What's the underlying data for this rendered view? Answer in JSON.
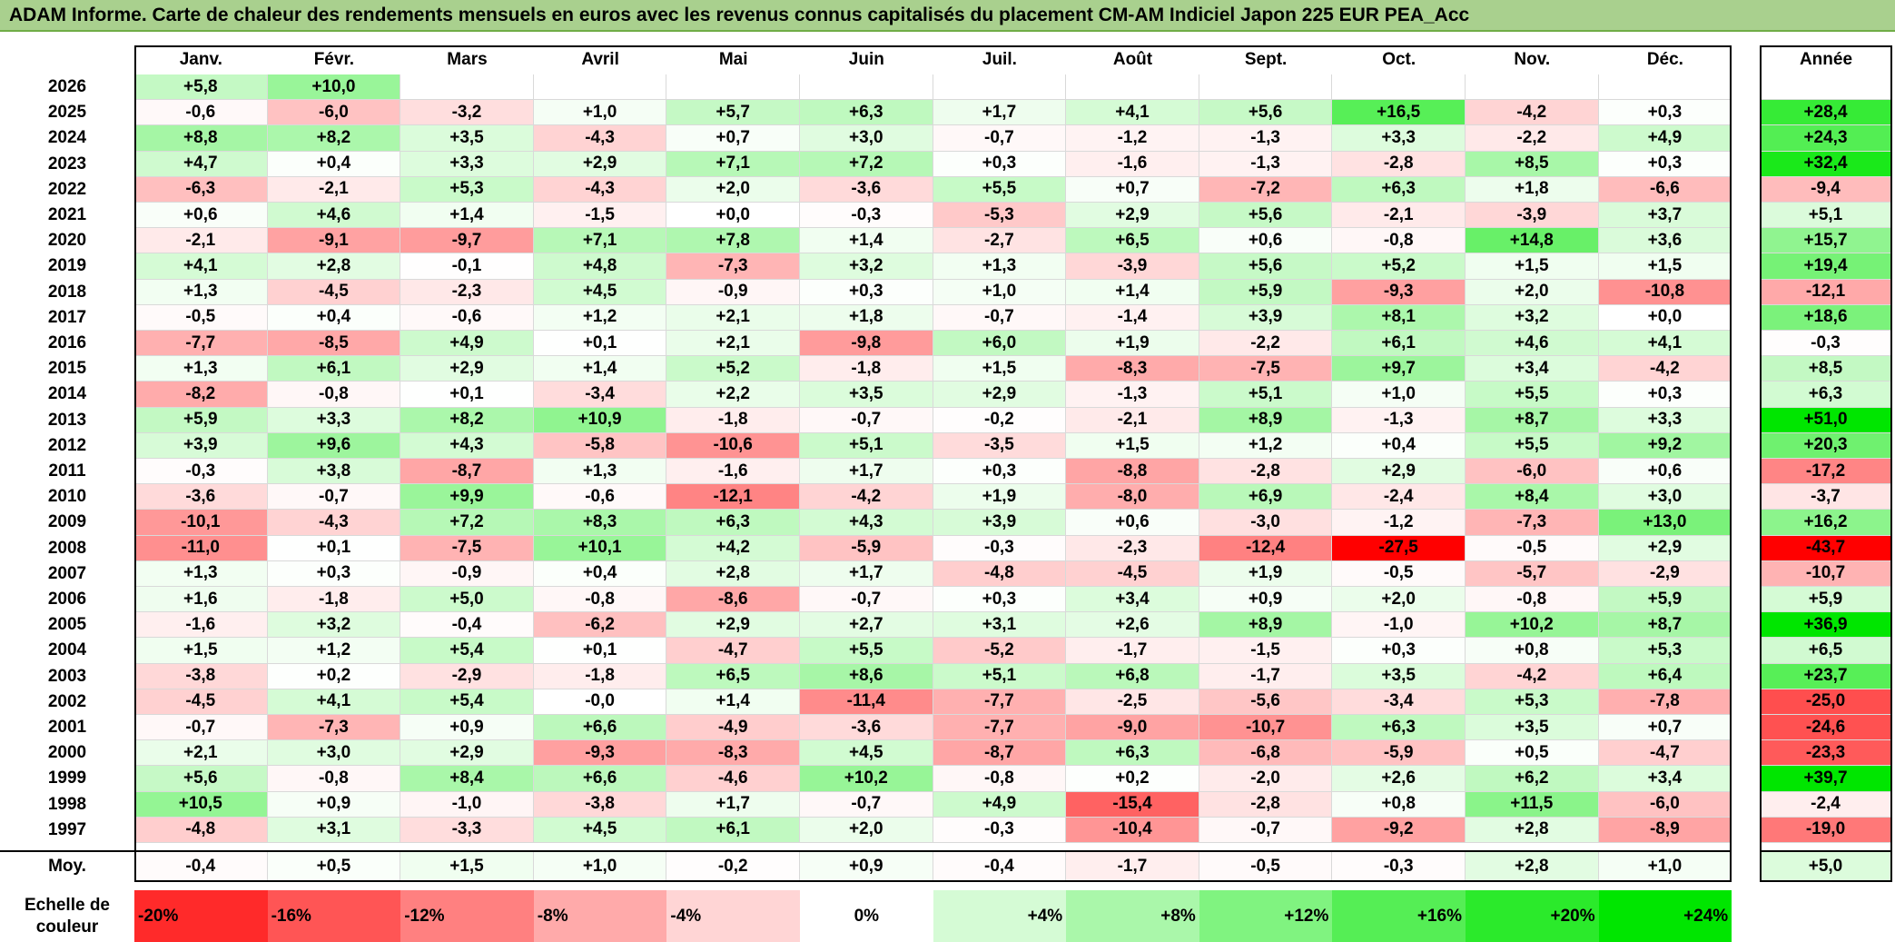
{
  "title": "ADAM Informe. Carte de chaleur des rendements mensuels en euros avec les revenus connus capitalisés du placement CM-AM Indiciel Japon 225 EUR PEA_Acc",
  "chart_data": {
    "type": "heatmap",
    "title": "ADAM Informe. Carte de chaleur des rendements mensuels en euros avec les revenus connus capitalisés du placement CM-AM Indiciel Japon 225 EUR PEA_Acc",
    "columns": [
      "Janv.",
      "Févr.",
      "Mars",
      "Avril",
      "Mai",
      "Juin",
      "Juil.",
      "Août",
      "Sept.",
      "Oct.",
      "Nov.",
      "Déc."
    ],
    "annual_header": "Année",
    "rows": [
      {
        "year": "2026",
        "values": [
          "+5,8",
          "+10,0",
          "",
          "",
          "",
          "",
          "",
          "",
          "",
          "",
          "",
          ""
        ],
        "annual": ""
      },
      {
        "year": "2025",
        "values": [
          "-0,6",
          "-6,0",
          "-3,2",
          "+1,0",
          "+5,7",
          "+6,3",
          "+1,7",
          "+4,1",
          "+5,6",
          "+16,5",
          "-4,2",
          "+0,3"
        ],
        "annual": "+28,4"
      },
      {
        "year": "2024",
        "values": [
          "+8,8",
          "+8,2",
          "+3,5",
          "-4,3",
          "+0,7",
          "+3,0",
          "-0,7",
          "-1,2",
          "-1,3",
          "+3,3",
          "-2,2",
          "+4,9"
        ],
        "annual": "+24,3"
      },
      {
        "year": "2023",
        "values": [
          "+4,7",
          "+0,4",
          "+3,3",
          "+2,9",
          "+7,1",
          "+7,2",
          "+0,3",
          "-1,6",
          "-1,3",
          "-2,8",
          "+8,5",
          "+0,3"
        ],
        "annual": "+32,4"
      },
      {
        "year": "2022",
        "values": [
          "-6,3",
          "-2,1",
          "+5,3",
          "-4,3",
          "+2,0",
          "-3,6",
          "+5,5",
          "+0,7",
          "-7,2",
          "+6,3",
          "+1,8",
          "-6,6"
        ],
        "annual": "-9,4"
      },
      {
        "year": "2021",
        "values": [
          "+0,6",
          "+4,6",
          "+1,4",
          "-1,5",
          "+0,0",
          "-0,3",
          "-5,3",
          "+2,9",
          "+5,6",
          "-2,1",
          "-3,9",
          "+3,7"
        ],
        "annual": "+5,1"
      },
      {
        "year": "2020",
        "values": [
          "-2,1",
          "-9,1",
          "-9,7",
          "+7,1",
          "+7,8",
          "+1,4",
          "-2,7",
          "+6,5",
          "+0,6",
          "-0,8",
          "+14,8",
          "+3,6"
        ],
        "annual": "+15,7"
      },
      {
        "year": "2019",
        "values": [
          "+4,1",
          "+2,8",
          "-0,1",
          "+4,8",
          "-7,3",
          "+3,2",
          "+1,3",
          "-3,9",
          "+5,6",
          "+5,2",
          "+1,5",
          "+1,5"
        ],
        "annual": "+19,4"
      },
      {
        "year": "2018",
        "values": [
          "+1,3",
          "-4,5",
          "-2,3",
          "+4,5",
          "-0,9",
          "+0,3",
          "+1,0",
          "+1,4",
          "+5,9",
          "-9,3",
          "+2,0",
          "-10,8"
        ],
        "annual": "-12,1"
      },
      {
        "year": "2017",
        "values": [
          "-0,5",
          "+0,4",
          "-0,6",
          "+1,2",
          "+2,1",
          "+1,8",
          "-0,7",
          "-1,4",
          "+3,9",
          "+8,1",
          "+3,2",
          "+0,0"
        ],
        "annual": "+18,6"
      },
      {
        "year": "2016",
        "values": [
          "-7,7",
          "-8,5",
          "+4,9",
          "+0,1",
          "+2,1",
          "-9,8",
          "+6,0",
          "+1,9",
          "-2,2",
          "+6,1",
          "+4,6",
          "+4,1"
        ],
        "annual": "-0,3"
      },
      {
        "year": "2015",
        "values": [
          "+1,3",
          "+6,1",
          "+2,9",
          "+1,4",
          "+5,2",
          "-1,8",
          "+1,5",
          "-8,3",
          "-7,5",
          "+9,7",
          "+3,4",
          "-4,2"
        ],
        "annual": "+8,5"
      },
      {
        "year": "2014",
        "values": [
          "-8,2",
          "-0,8",
          "+0,1",
          "-3,4",
          "+2,2",
          "+3,5",
          "+2,9",
          "-1,3",
          "+5,1",
          "+1,0",
          "+5,5",
          "+0,3"
        ],
        "annual": "+6,3"
      },
      {
        "year": "2013",
        "values": [
          "+5,9",
          "+3,3",
          "+8,2",
          "+10,9",
          "-1,8",
          "-0,7",
          "-0,2",
          "-2,1",
          "+8,9",
          "-1,3",
          "+8,7",
          "+3,3"
        ],
        "annual": "+51,0"
      },
      {
        "year": "2012",
        "values": [
          "+3,9",
          "+9,6",
          "+4,3",
          "-5,8",
          "-10,6",
          "+5,1",
          "-3,5",
          "+1,5",
          "+1,2",
          "+0,4",
          "+5,5",
          "+9,2"
        ],
        "annual": "+20,3"
      },
      {
        "year": "2011",
        "values": [
          "-0,3",
          "+3,8",
          "-8,7",
          "+1,3",
          "-1,6",
          "+1,7",
          "+0,3",
          "-8,8",
          "-2,8",
          "+2,9",
          "-6,0",
          "+0,6"
        ],
        "annual": "-17,2"
      },
      {
        "year": "2010",
        "values": [
          "-3,6",
          "-0,7",
          "+9,9",
          "-0,6",
          "-12,1",
          "-4,2",
          "+1,9",
          "-8,0",
          "+6,9",
          "-2,4",
          "+8,4",
          "+3,0"
        ],
        "annual": "-3,7"
      },
      {
        "year": "2009",
        "values": [
          "-10,1",
          "-4,3",
          "+7,2",
          "+8,3",
          "+6,3",
          "+4,3",
          "+3,9",
          "+0,6",
          "-3,0",
          "-1,2",
          "-7,3",
          "+13,0"
        ],
        "annual": "+16,2"
      },
      {
        "year": "2008",
        "values": [
          "-11,0",
          "+0,1",
          "-7,5",
          "+10,1",
          "+4,2",
          "-5,9",
          "-0,3",
          "-2,3",
          "-12,4",
          "-27,5",
          "-0,5",
          "+2,9"
        ],
        "annual": "-43,7"
      },
      {
        "year": "2007",
        "values": [
          "+1,3",
          "+0,3",
          "-0,9",
          "+0,4",
          "+2,8",
          "+1,7",
          "-4,8",
          "-4,5",
          "+1,9",
          "-0,5",
          "-5,7",
          "-2,9"
        ],
        "annual": "-10,7"
      },
      {
        "year": "2006",
        "values": [
          "+1,6",
          "-1,8",
          "+5,0",
          "-0,8",
          "-8,6",
          "-0,7",
          "+0,3",
          "+3,4",
          "+0,9",
          "+2,0",
          "-0,8",
          "+5,9"
        ],
        "annual": "+5,9"
      },
      {
        "year": "2005",
        "values": [
          "-1,6",
          "+3,2",
          "-0,4",
          "-6,2",
          "+2,9",
          "+2,7",
          "+3,1",
          "+2,6",
          "+8,9",
          "-1,0",
          "+10,2",
          "+8,7"
        ],
        "annual": "+36,9"
      },
      {
        "year": "2004",
        "values": [
          "+1,5",
          "+1,2",
          "+5,4",
          "+0,1",
          "-4,7",
          "+5,5",
          "-5,2",
          "-1,7",
          "-1,5",
          "+0,3",
          "+0,8",
          "+5,3"
        ],
        "annual": "+6,5"
      },
      {
        "year": "2003",
        "values": [
          "-3,8",
          "+0,2",
          "-2,9",
          "-1,8",
          "+6,5",
          "+8,6",
          "+5,1",
          "+6,8",
          "-1,7",
          "+3,5",
          "-4,2",
          "+6,4"
        ],
        "annual": "+23,7"
      },
      {
        "year": "2002",
        "values": [
          "-4,5",
          "+4,1",
          "+5,4",
          "-0,0",
          "+1,4",
          "-11,4",
          "-7,7",
          "-2,5",
          "-5,6",
          "-3,4",
          "+5,3",
          "-7,8"
        ],
        "annual": "-25,0"
      },
      {
        "year": "2001",
        "values": [
          "-0,7",
          "-7,3",
          "+0,9",
          "+6,6",
          "-4,9",
          "-3,6",
          "-7,7",
          "-9,0",
          "-10,7",
          "+6,3",
          "+3,5",
          "+0,7"
        ],
        "annual": "-24,6"
      },
      {
        "year": "2000",
        "values": [
          "+2,1",
          "+3,0",
          "+2,9",
          "-9,3",
          "-8,3",
          "+4,5",
          "-8,7",
          "+6,3",
          "-6,8",
          "-5,9",
          "+0,5",
          "-4,7"
        ],
        "annual": "-23,3"
      },
      {
        "year": "1999",
        "values": [
          "+5,6",
          "-0,8",
          "+8,4",
          "+6,6",
          "-4,6",
          "+10,2",
          "-0,8",
          "+0,2",
          "-2,0",
          "+2,6",
          "+6,2",
          "+3,4"
        ],
        "annual": "+39,7"
      },
      {
        "year": "1998",
        "values": [
          "+10,5",
          "+0,9",
          "-1,0",
          "-3,8",
          "+1,7",
          "-0,7",
          "+4,9",
          "-15,4",
          "-2,8",
          "+0,8",
          "+11,5",
          "-6,0"
        ],
        "annual": "-2,4"
      },
      {
        "year": "1997",
        "values": [
          "-4,8",
          "+3,1",
          "-3,3",
          "+4,5",
          "+6,1",
          "+2,0",
          "-0,3",
          "-10,4",
          "-0,7",
          "-9,2",
          "+2,8",
          "-8,9"
        ],
        "annual": "-19,0"
      }
    ],
    "average": {
      "label": "Moy.",
      "values": [
        "-0,4",
        "+0,5",
        "+1,5",
        "+1,0",
        "-0,2",
        "+0,9",
        "-0,4",
        "-1,7",
        "-0,5",
        "-0,3",
        "+2,8",
        "+1,0"
      ],
      "annual": "+5,0"
    },
    "scale": {
      "label": "Echelle de couleur",
      "items": [
        "-20%",
        "-16%",
        "-12%",
        "-8%",
        "-4%",
        "0%",
        "+4%",
        "+8%",
        "+12%",
        "+16%",
        "+20%",
        "+24%"
      ],
      "values": [
        -20,
        -16,
        -12,
        -8,
        -4,
        0,
        4,
        8,
        12,
        16,
        20,
        24
      ]
    },
    "colors": {
      "negative": "#ff0000",
      "zero": "#ffffff",
      "positive": "#00e600",
      "title_bg": "#a9d08e"
    }
  }
}
